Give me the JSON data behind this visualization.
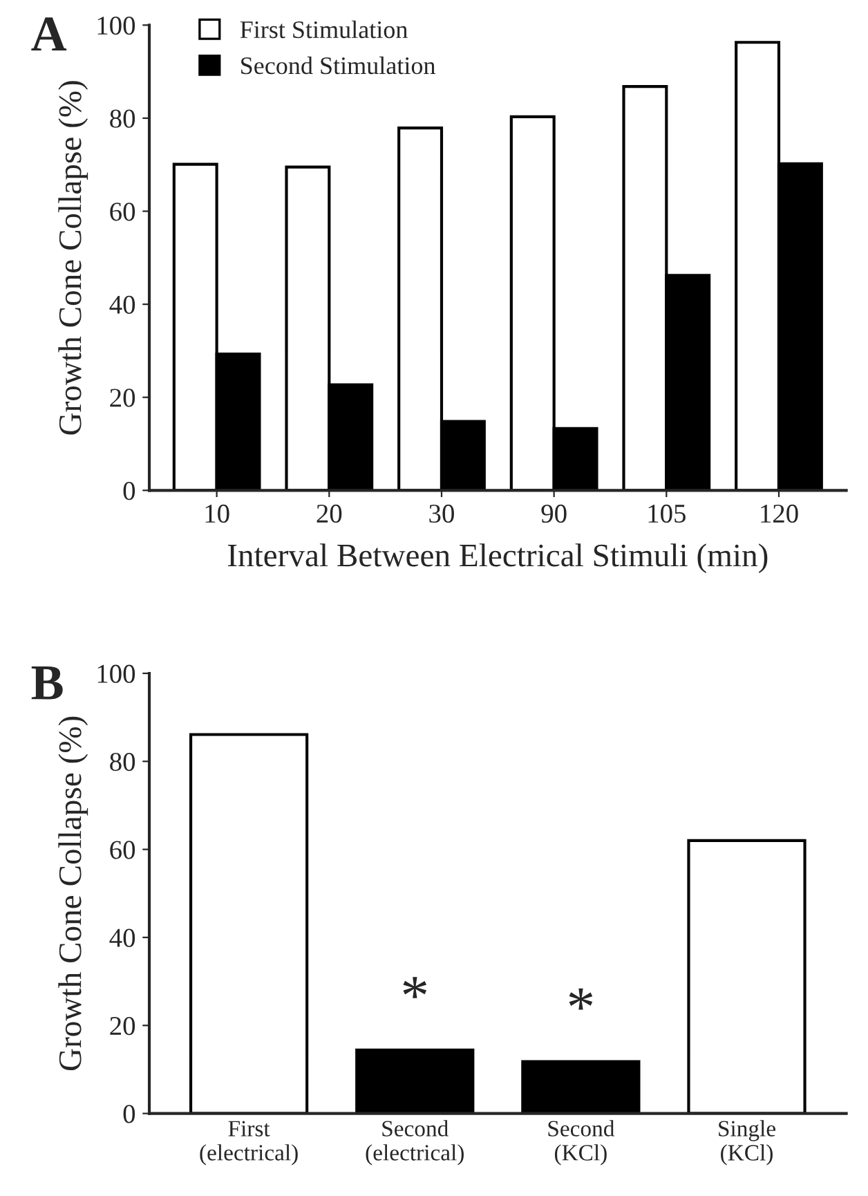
{
  "chart_data": [
    {
      "type": "bar",
      "title": "A",
      "categories": [
        "10",
        "20",
        "30",
        "90",
        "105",
        "120"
      ],
      "xlabel": "Interval Between Electrical Stimuli (min)",
      "ylabel": "Growth Cone Collapse (%)",
      "ylim": [
        0,
        100
      ],
      "yticks": [
        0,
        20,
        40,
        60,
        80,
        100
      ],
      "legend": "top left",
      "grid": false,
      "series": [
        {
          "name": "First Stimulation",
          "color": "#ffffff",
          "values": [
            70.1,
            69.5,
            77.9,
            80.3,
            86.8,
            96.3
          ]
        },
        {
          "name": "Second Stimulation",
          "color": "#000000",
          "values": [
            29.3,
            22.7,
            14.8,
            13.3,
            46.2,
            70.2
          ]
        }
      ]
    },
    {
      "type": "bar",
      "title": "B",
      "categories": [
        "First\n(electrical)",
        "Second\n(electrical)",
        "Second\n(KCl)",
        "Single\n(KCl)"
      ],
      "ylabel": "Growth Cone Collapse (%)",
      "ylim": [
        0,
        100
      ],
      "yticks": [
        0,
        20,
        40,
        60,
        80,
        100
      ],
      "grid": false,
      "values": [
        86.1,
        14.4,
        11.8,
        62.0
      ],
      "colors": [
        "#ffffff",
        "#000000",
        "#000000",
        "#ffffff"
      ],
      "annotations": [
        "*",
        "*"
      ]
    }
  ]
}
